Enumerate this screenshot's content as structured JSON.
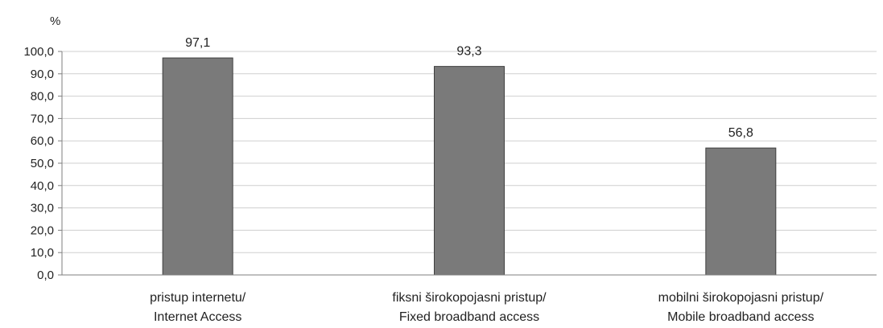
{
  "chart_data": {
    "type": "bar",
    "unit": "%",
    "categories": [
      [
        "pristup internetu/",
        "Internet Access"
      ],
      [
        "fiksni širokopojasni pristup/",
        "Fixed broadband access"
      ],
      [
        "mobilni širokopojasni pristup/",
        "Mobile broadband access"
      ]
    ],
    "values": [
      97.1,
      93.3,
      56.8
    ],
    "value_labels": [
      "97,1",
      "93,3",
      "56,8"
    ],
    "ylim": [
      0,
      100
    ],
    "yticks": [
      0,
      10,
      20,
      30,
      40,
      50,
      60,
      70,
      80,
      90,
      100
    ],
    "ytick_labels": [
      "0,0",
      "10,0",
      "20,0",
      "30,0",
      "40,0",
      "50,0",
      "60,0",
      "70,0",
      "80,0",
      "90,0",
      "100,0"
    ],
    "grid": true,
    "legend": "none",
    "colors": {
      "bar_fill": "#7a7a7a",
      "bar_stroke": "#3f3f3f",
      "grid": "#cfcfcf",
      "axis": "#7f7f7f"
    }
  }
}
